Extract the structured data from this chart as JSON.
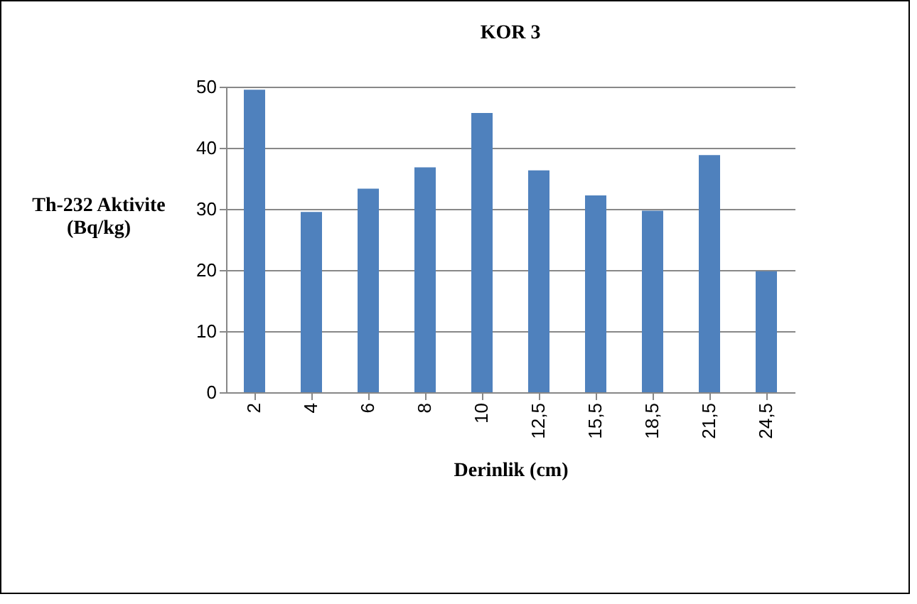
{
  "chart_data": {
    "type": "bar",
    "title": "KOR 3",
    "xlabel": "Derinlik (cm)",
    "ylabel": "Th-232 Aktivite\n(Bq/kg)",
    "categories": [
      "2",
      "4",
      "6",
      "8",
      "10",
      "12,5",
      "15,5",
      "18,5",
      "21,5",
      "24,5"
    ],
    "values": [
      49.5,
      29.5,
      33.3,
      36.8,
      45.7,
      36.3,
      32.2,
      29.7,
      38.8,
      19.8
    ],
    "color": "#4f81bd",
    "ylim": [
      0,
      50
    ],
    "yticks": [
      0,
      10,
      20,
      30,
      40,
      50
    ],
    "grid": "y"
  }
}
